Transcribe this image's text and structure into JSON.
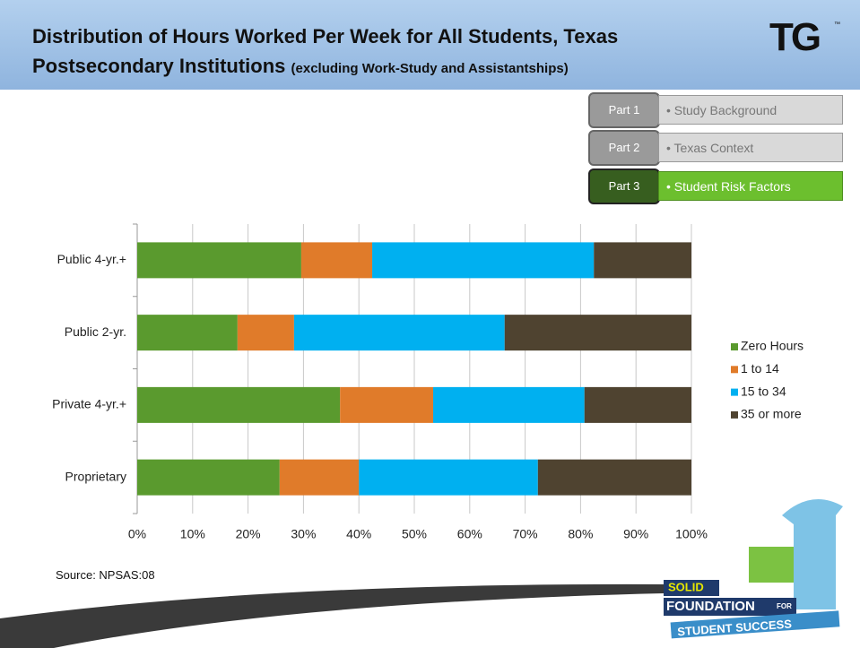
{
  "header": {
    "title": "Distribution of Hours Worked Per Week for All Students, Texas Postsecondary Institutions",
    "subtitle": "(excluding Work-Study and Assistantships)",
    "logo": "TG",
    "trademark": "™"
  },
  "nav": [
    {
      "part": "Part 1",
      "label": "• Study Background"
    },
    {
      "part": "Part 2",
      "label": "• Texas Context"
    },
    {
      "part": "Part 3",
      "label": "• Student Risk Factors"
    }
  ],
  "source": "Source: NPSAS:08",
  "footer_logo": {
    "line1": "SOLID",
    "line2": "FOUNDATION",
    "line2b": "FOR",
    "line3": "STUDENT SUCCESS"
  },
  "chart_data": {
    "type": "stacked-bar-horizontal",
    "categories": [
      "Public 4-yr.+",
      "Public 2-yr.",
      "Private 4-yr.+",
      "Proprietary"
    ],
    "series": [
      {
        "name": "Zero Hours",
        "color": "#5a9a2e",
        "values": [
          29.6,
          18.1,
          36.6,
          25.7
        ]
      },
      {
        "name": "1 to 14",
        "color": "#e07b2a",
        "values": [
          12.8,
          10.2,
          16.8,
          14.3
        ]
      },
      {
        "name": "15 to 34",
        "color": "#00b0f0",
        "values": [
          40.0,
          38.0,
          27.3,
          32.3
        ]
      },
      {
        "name": "35 or more",
        "color": "#4f4330",
        "values": [
          17.6,
          33.7,
          19.3,
          27.7
        ]
      }
    ],
    "xlim": [
      0,
      100
    ],
    "xticks": [
      {
        "value": 0,
        "label": "0%"
      },
      {
        "value": 10,
        "label": "10%"
      },
      {
        "value": 20,
        "label": "20%"
      },
      {
        "value": 30,
        "label": "30%"
      },
      {
        "value": 40,
        "label": "40%"
      },
      {
        "value": 50,
        "label": "50%"
      },
      {
        "value": 60,
        "label": "60%"
      },
      {
        "value": 70,
        "label": "70%"
      },
      {
        "value": 80,
        "label": "80%"
      },
      {
        "value": 90,
        "label": "90%"
      },
      {
        "value": 100,
        "label": "100%"
      }
    ],
    "grid": true,
    "legend": "right"
  }
}
